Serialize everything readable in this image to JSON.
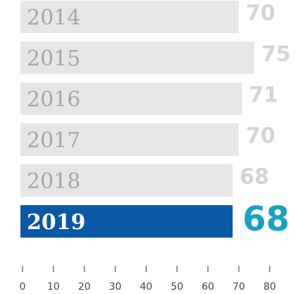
{
  "chart_data": {
    "type": "hbar",
    "categories": [
      "2014",
      "2015",
      "2016",
      "2017",
      "2018",
      "2019"
    ],
    "values": [
      70,
      75,
      71,
      70,
      68,
      68
    ],
    "colors": [
      "#e6e6e6",
      "#e6e6e6",
      "#e6e6e6",
      "#e6e6e6",
      "#e6e6e6",
      "#0a58a6"
    ],
    "label_colors": [
      "#a6a6a6",
      "#a6a6a6",
      "#a6a6a6",
      "#a6a6a6",
      "#a6a6a6",
      "#ffffff"
    ],
    "value_label_colors": [
      "#d4d4d4",
      "#d4d4d4",
      "#d4d4d4",
      "#d4d4d4",
      "#d4d4d4",
      "#17a2c4"
    ],
    "xlim": [
      0,
      80
    ],
    "xticks": [
      0,
      10,
      20,
      30,
      40,
      50,
      60,
      70,
      80
    ]
  }
}
